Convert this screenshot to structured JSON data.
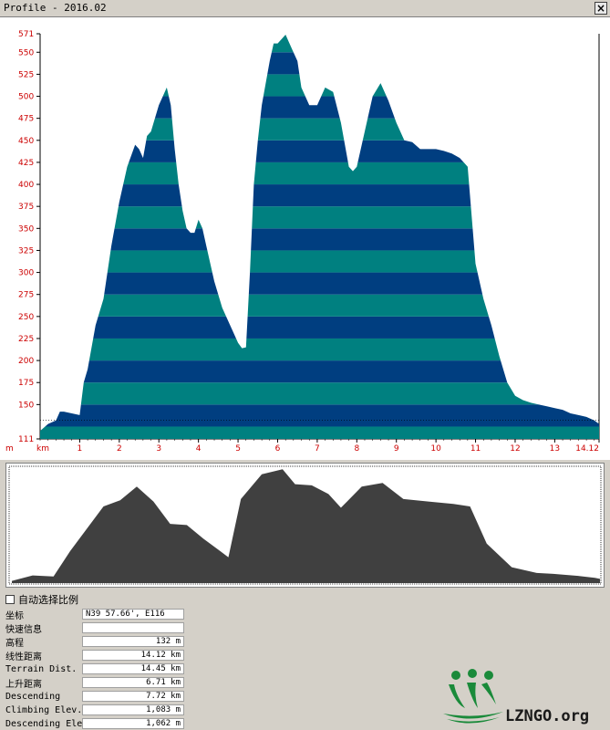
{
  "window": {
    "title": "Profile - 2016.02"
  },
  "chart_data": [
    {
      "type": "area",
      "y_unit_label": "m",
      "x_unit_label": "km",
      "yticks": [
        571,
        550,
        525,
        500,
        475,
        450,
        425,
        400,
        375,
        350,
        325,
        300,
        275,
        250,
        225,
        200,
        175,
        150,
        111
      ],
      "xticks": [
        "1",
        "2",
        "3",
        "4",
        "5",
        "6",
        "7",
        "8",
        "9",
        "10",
        "11",
        "12",
        "13",
        "14.12"
      ],
      "ylim": [
        111,
        571
      ],
      "xlim": [
        0,
        14.12
      ],
      "current_elevation_line": 132,
      "x": [
        0,
        0.2,
        0.4,
        0.5,
        0.6,
        0.8,
        1.0,
        1.1,
        1.2,
        1.4,
        1.6,
        1.8,
        2.0,
        2.2,
        2.4,
        2.5,
        2.6,
        2.7,
        2.8,
        3.0,
        3.1,
        3.2,
        3.3,
        3.4,
        3.5,
        3.6,
        3.7,
        3.8,
        3.9,
        4.0,
        4.1,
        4.2,
        4.4,
        4.6,
        4.8,
        5.0,
        5.1,
        5.2,
        5.3,
        5.4,
        5.5,
        5.6,
        5.8,
        5.9,
        6.0,
        6.2,
        6.4,
        6.5,
        6.6,
        6.8,
        7.0,
        7.2,
        7.4,
        7.6,
        7.8,
        7.9,
        8.0,
        8.2,
        8.4,
        8.6,
        8.8,
        9.0,
        9.2,
        9.4,
        9.6,
        9.8,
        10.0,
        10.2,
        10.4,
        10.6,
        10.8,
        11.0,
        11.2,
        11.4,
        11.6,
        11.8,
        12.0,
        12.2,
        12.4,
        12.6,
        12.8,
        13.0,
        13.2,
        13.4,
        13.6,
        13.8,
        14.0,
        14.12
      ],
      "y": [
        120,
        128,
        132,
        142,
        142,
        140,
        138,
        175,
        190,
        240,
        270,
        330,
        380,
        420,
        445,
        440,
        430,
        455,
        460,
        490,
        500,
        510,
        490,
        440,
        400,
        370,
        350,
        345,
        345,
        360,
        350,
        330,
        290,
        260,
        240,
        220,
        214,
        215,
        300,
        400,
        450,
        490,
        540,
        560,
        560,
        570,
        550,
        540,
        510,
        490,
        490,
        510,
        505,
        470,
        420,
        415,
        420,
        460,
        500,
        515,
        495,
        470,
        450,
        448,
        440,
        440,
        440,
        438,
        435,
        430,
        420,
        310,
        270,
        240,
        205,
        175,
        160,
        155,
        152,
        150,
        148,
        146,
        144,
        140,
        138,
        136,
        132,
        128
      ]
    },
    {
      "type": "area",
      "x": [
        0,
        0.5,
        1.0,
        1.4,
        1.8,
        2.2,
        2.6,
        3.0,
        3.4,
        3.8,
        4.2,
        4.6,
        5.0,
        5.2,
        5.5,
        6.0,
        6.5,
        6.8,
        7.2,
        7.6,
        7.9,
        8.4,
        8.9,
        9.4,
        10.0,
        10.6,
        11.0,
        11.4,
        12.0,
        12.6,
        13.0,
        13.6,
        14.0,
        14.12
      ],
      "y": [
        120,
        142,
        138,
        240,
        330,
        420,
        445,
        500,
        440,
        350,
        345,
        290,
        240,
        215,
        450,
        550,
        570,
        510,
        505,
        470,
        415,
        500,
        515,
        450,
        440,
        430,
        420,
        270,
        175,
        152,
        148,
        140,
        132,
        128
      ],
      "ylim": [
        111,
        571
      ]
    }
  ],
  "options": {
    "auto_scale_label": "自动选择比例"
  },
  "info_rows": [
    {
      "label": "坐标",
      "value": "N39 57.66', E116",
      "align": "left"
    },
    {
      "label": "快速信息",
      "value": "",
      "align": "left"
    },
    {
      "label": "高程",
      "value": "132 m",
      "align": "right"
    },
    {
      "label": "线性距离",
      "value": "14.12 km",
      "align": "right"
    },
    {
      "label": "Terrain Dist.",
      "value": "14.45 km",
      "align": "right"
    },
    {
      "label": "上升距离",
      "value": "6.71 km",
      "align": "right"
    },
    {
      "label": "Descending",
      "value": "7.72 km",
      "align": "right"
    },
    {
      "label": "Climbing Elev.",
      "value": "1,083 m",
      "align": "right"
    },
    {
      "label": "Descending Elev.",
      "value": "1,062 m",
      "align": "right"
    }
  ],
  "logo": {
    "text": "LZNGO.org"
  },
  "colors": {
    "band_a": "#008080",
    "band_b": "#003e80",
    "overview_fill": "#404040",
    "axis_text": "#cc0000"
  }
}
